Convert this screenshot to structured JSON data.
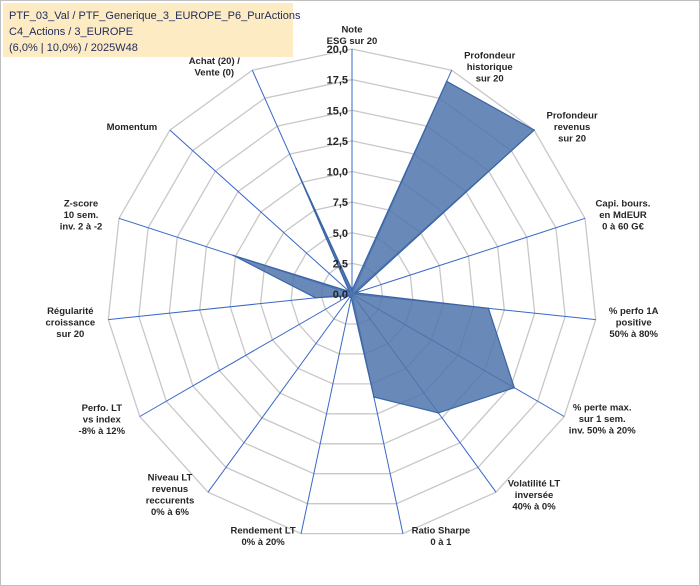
{
  "title_box": {
    "line1": "PTF_03_Val / PTF_Generique_3_EUROPE_P6_PurActions",
    "line2": "C4_Actions / 3_EUROPE",
    "line3": "(6,0% | 10,0%) / 2025W48"
  },
  "chart_data": {
    "type": "radar",
    "r_range": [
      0,
      20
    ],
    "r_ticks": [
      "0,0",
      "2,5",
      "5,0",
      "7,5",
      "10,0",
      "12,5",
      "15,0",
      "17,5",
      "20,0"
    ],
    "grid": true,
    "series": [
      {
        "values": [
          0.3,
          19.0,
          20.0,
          0.3,
          11.2,
          15.3,
          12.0,
          8.6,
          0.3,
          0.3,
          0.3,
          3.0,
          10.2,
          0.3,
          11.2
        ]
      }
    ],
    "axes": [
      {
        "lines": [
          "Note",
          "ESG sur 20"
        ]
      },
      {
        "lines": [
          "Profondeur",
          "historique",
          "sur 20"
        ]
      },
      {
        "lines": [
          "Profondeur",
          "revenus",
          "sur 20"
        ]
      },
      {
        "lines": [
          "Capi. bours.",
          "en MdEUR",
          "0 à 60 G€"
        ]
      },
      {
        "lines": [
          "% perfo 1A",
          "positive",
          "50% à 80%"
        ]
      },
      {
        "lines": [
          "% perte max.",
          "sur 1 sem.",
          "inv. 50% à 20%"
        ]
      },
      {
        "lines": [
          "Volatilité LT",
          "inversée",
          "40% à 0%"
        ]
      },
      {
        "lines": [
          "Ratio Sharpe",
          "0 à 1"
        ]
      },
      {
        "lines": [
          "Rendement LT",
          "0% à 20%"
        ]
      },
      {
        "lines": [
          "Niveau LT",
          "revenus",
          "reccurents",
          "0% à 6%"
        ]
      },
      {
        "lines": [
          "Perfo. LT",
          "vs index",
          "-8% à 12%"
        ]
      },
      {
        "lines": [
          "Régularité",
          "croissance",
          "sur 20"
        ]
      },
      {
        "lines": [
          "Z-score",
          "10 sem.",
          "inv. 2 à -2"
        ]
      },
      {
        "lines": [
          "Momentum"
        ],
        "color": "#b8a27a"
      },
      {
        "lines": [
          "Achat (20) /",
          "Vente (0)"
        ]
      }
    ],
    "colors": {
      "fill": "#4f76ab",
      "stroke": "#3a64a6",
      "grid": "#c8c8c8",
      "spoke": "#3a67c8"
    }
  }
}
